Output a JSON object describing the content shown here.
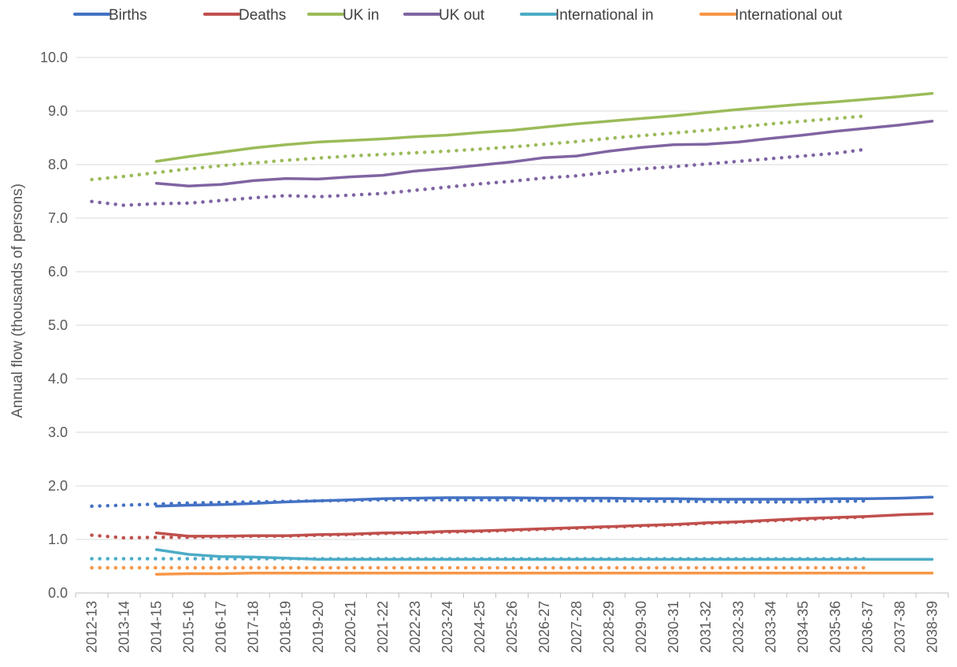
{
  "chart_data": {
    "type": "line",
    "title": "",
    "xlabel": "",
    "ylabel": "Annual flow (thousands of persons)",
    "ylim": [
      0,
      10
    ],
    "yticks": [
      "0.0",
      "1.0",
      "2.0",
      "3.0",
      "4.0",
      "5.0",
      "6.0",
      "7.0",
      "8.0",
      "9.0",
      "10.0"
    ],
    "grid": true,
    "legend_position": "top",
    "categories": [
      "2012-13",
      "2013-14",
      "2014-15",
      "2015-16",
      "2016-17",
      "2017-18",
      "2018-19",
      "2019-20",
      "2020-21",
      "2021-22",
      "2022-23",
      "2023-24",
      "2024-25",
      "2025-26",
      "2026-27",
      "2027-28",
      "2028-29",
      "2029-30",
      "2030-31",
      "2031-32",
      "2032-33",
      "2033-34",
      "2034-35",
      "2035-36",
      "2036-37",
      "2037-38",
      "2038-39"
    ],
    "series": [
      {
        "name": "Births",
        "color": "#4472c4",
        "style": "solid",
        "values": [
          null,
          null,
          1.62,
          1.64,
          1.65,
          1.67,
          1.7,
          1.72,
          1.74,
          1.76,
          1.77,
          1.78,
          1.78,
          1.78,
          1.77,
          1.77,
          1.77,
          1.76,
          1.76,
          1.75,
          1.75,
          1.75,
          1.75,
          1.76,
          1.76,
          1.77,
          1.79
        ]
      },
      {
        "name": "Deaths",
        "color": "#c0504d",
        "style": "solid",
        "values": [
          null,
          null,
          1.12,
          1.06,
          1.06,
          1.07,
          1.07,
          1.09,
          1.1,
          1.12,
          1.13,
          1.15,
          1.16,
          1.18,
          1.2,
          1.22,
          1.24,
          1.26,
          1.28,
          1.31,
          1.33,
          1.36,
          1.39,
          1.41,
          1.43,
          1.46,
          1.48
        ]
      },
      {
        "name": "UK in",
        "color": "#9bbb59",
        "style": "solid",
        "values": [
          null,
          null,
          8.06,
          8.15,
          8.23,
          8.31,
          8.37,
          8.42,
          8.45,
          8.48,
          8.52,
          8.55,
          8.6,
          8.64,
          8.7,
          8.76,
          8.81,
          8.86,
          8.91,
          8.97,
          9.03,
          9.08,
          9.13,
          9.17,
          9.22,
          9.27,
          9.33
        ]
      },
      {
        "name": "UK out",
        "color": "#8064a2",
        "style": "solid",
        "values": [
          null,
          null,
          7.65,
          7.6,
          7.63,
          7.7,
          7.74,
          7.73,
          7.77,
          7.8,
          7.88,
          7.93,
          7.99,
          8.05,
          8.13,
          8.16,
          8.25,
          8.32,
          8.37,
          8.38,
          8.42,
          8.49,
          8.55,
          8.62,
          8.68,
          8.74,
          8.81
        ]
      },
      {
        "name": "International in",
        "color": "#4bacc6",
        "style": "solid",
        "values": [
          null,
          null,
          0.81,
          0.72,
          0.68,
          0.67,
          0.65,
          0.63,
          0.63,
          0.63,
          0.63,
          0.63,
          0.63,
          0.63,
          0.63,
          0.63,
          0.63,
          0.63,
          0.63,
          0.63,
          0.63,
          0.63,
          0.63,
          0.63,
          0.63,
          0.63,
          0.63
        ]
      },
      {
        "name": "International out",
        "color": "#f79646",
        "style": "solid",
        "values": [
          null,
          null,
          0.35,
          0.36,
          0.36,
          0.37,
          0.37,
          0.37,
          0.37,
          0.37,
          0.37,
          0.37,
          0.37,
          0.37,
          0.37,
          0.37,
          0.37,
          0.37,
          0.37,
          0.37,
          0.37,
          0.37,
          0.37,
          0.37,
          0.37,
          0.37,
          0.37
        ]
      },
      {
        "color": "#9bbb59",
        "style": "dotted",
        "values": [
          7.72,
          7.78,
          7.85,
          7.92,
          7.98,
          8.03,
          8.08,
          8.12,
          8.16,
          8.19,
          8.22,
          8.25,
          8.29,
          8.33,
          8.38,
          8.43,
          8.49,
          8.54,
          8.59,
          8.64,
          8.7,
          8.76,
          8.81,
          8.86,
          8.91,
          null,
          null
        ]
      },
      {
        "color": "#8064a2",
        "style": "dotted",
        "values": [
          7.31,
          7.24,
          7.27,
          7.28,
          7.33,
          7.38,
          7.42,
          7.4,
          7.43,
          7.46,
          7.52,
          7.58,
          7.64,
          7.69,
          7.75,
          7.79,
          7.86,
          7.92,
          7.96,
          8.01,
          8.06,
          8.11,
          8.16,
          8.21,
          8.29,
          null,
          null
        ]
      },
      {
        "color": "#4472c4",
        "style": "dotted",
        "values": [
          1.62,
          1.64,
          1.66,
          1.68,
          1.69,
          1.7,
          1.71,
          1.72,
          1.73,
          1.74,
          1.74,
          1.74,
          1.74,
          1.74,
          1.73,
          1.73,
          1.72,
          1.72,
          1.71,
          1.71,
          1.7,
          1.7,
          1.7,
          1.71,
          1.72,
          null,
          null
        ]
      },
      {
        "color": "#c0504d",
        "style": "dotted",
        "values": [
          1.08,
          1.03,
          1.04,
          1.04,
          1.05,
          1.06,
          1.06,
          1.08,
          1.09,
          1.11,
          1.12,
          1.14,
          1.15,
          1.17,
          1.19,
          1.21,
          1.23,
          1.25,
          1.27,
          1.3,
          1.32,
          1.35,
          1.37,
          1.4,
          1.42,
          null,
          null
        ]
      },
      {
        "color": "#4bacc6",
        "style": "dotted",
        "values": [
          0.64,
          0.64,
          0.64,
          0.64,
          0.64,
          0.64,
          0.64,
          0.64,
          0.64,
          0.64,
          0.64,
          0.64,
          0.64,
          0.64,
          0.64,
          0.64,
          0.64,
          0.64,
          0.64,
          0.64,
          0.64,
          0.64,
          0.64,
          0.64,
          0.64,
          null,
          null
        ]
      },
      {
        "color": "#f79646",
        "style": "dotted",
        "values": [
          0.47,
          0.47,
          0.47,
          0.47,
          0.47,
          0.47,
          0.47,
          0.47,
          0.47,
          0.47,
          0.47,
          0.47,
          0.47,
          0.47,
          0.47,
          0.47,
          0.47,
          0.47,
          0.47,
          0.47,
          0.47,
          0.47,
          0.47,
          0.47,
          0.47,
          null,
          null
        ]
      }
    ]
  }
}
